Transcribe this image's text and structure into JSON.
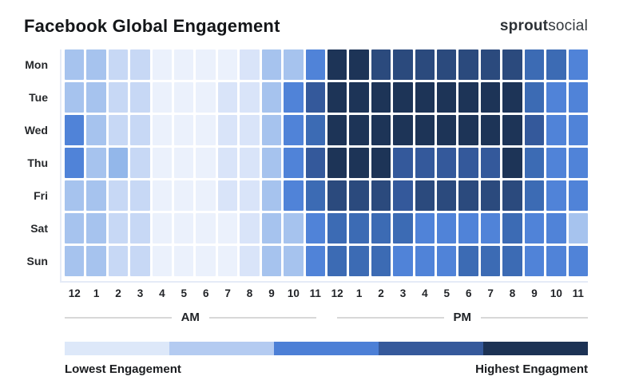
{
  "header": {
    "title": "Facebook Global Engagement",
    "logo": {
      "bold": "sprout",
      "light": "social"
    }
  },
  "chart_data": {
    "type": "heatmap",
    "title": "Facebook Global Engagement",
    "rows": [
      "Mon",
      "Tue",
      "Wed",
      "Thu",
      "Fri",
      "Sat",
      "Sun"
    ],
    "columns": [
      "12",
      "1",
      "2",
      "3",
      "4",
      "5",
      "6",
      "7",
      "8",
      "9",
      "10",
      "11",
      "12",
      "1",
      "2",
      "3",
      "4",
      "5",
      "6",
      "7",
      "8",
      "9",
      "10",
      "11"
    ],
    "column_periods": [
      "AM",
      "PM"
    ],
    "value_scale": "engagement level 1 (lowest) to 10 (highest)",
    "palette": [
      "#EBF1FC",
      "#D9E4F9",
      "#C7D8F5",
      "#A6C3EE",
      "#93B7EA",
      "#5083D8",
      "#3C6BB4",
      "#34599B",
      "#2B4A7D",
      "#1D3457"
    ],
    "values": [
      [
        4,
        4,
        3,
        3,
        1,
        1,
        1,
        1,
        2,
        4,
        4,
        6,
        10,
        10,
        9,
        9,
        9,
        9,
        9,
        9,
        9,
        7,
        7,
        6
      ],
      [
        4,
        4,
        3,
        3,
        1,
        1,
        1,
        2,
        2,
        4,
        6,
        8,
        10,
        10,
        10,
        10,
        10,
        10,
        10,
        10,
        10,
        7,
        6,
        6
      ],
      [
        6,
        4,
        3,
        3,
        1,
        1,
        1,
        2,
        2,
        4,
        6,
        7,
        10,
        10,
        10,
        10,
        10,
        10,
        10,
        10,
        10,
        8,
        6,
        6
      ],
      [
        6,
        4,
        5,
        3,
        1,
        1,
        1,
        2,
        2,
        4,
        6,
        8,
        10,
        10,
        10,
        8,
        8,
        8,
        8,
        8,
        10,
        7,
        6,
        6
      ],
      [
        4,
        4,
        3,
        3,
        1,
        1,
        1,
        2,
        2,
        4,
        6,
        7,
        9,
        9,
        9,
        8,
        9,
        9,
        9,
        9,
        9,
        7,
        6,
        6
      ],
      [
        4,
        4,
        3,
        3,
        1,
        1,
        1,
        1,
        2,
        4,
        4,
        6,
        7,
        7,
        7,
        7,
        6,
        6,
        6,
        6,
        7,
        6,
        6,
        4
      ],
      [
        4,
        4,
        3,
        3,
        1,
        1,
        1,
        1,
        2,
        4,
        4,
        6,
        7,
        7,
        7,
        6,
        6,
        6,
        7,
        7,
        7,
        6,
        6,
        6
      ]
    ],
    "legend": {
      "colors": [
        "#DDE8F9",
        "#B4CBF1",
        "#4C7FD6",
        "#35599B",
        "#1C3254"
      ],
      "min_label": "Lowest Engagement",
      "max_label": "Highest Engagment"
    }
  }
}
